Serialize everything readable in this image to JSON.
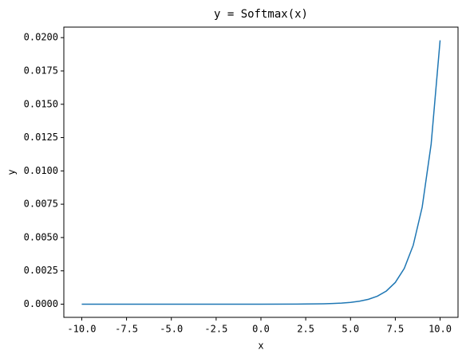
{
  "chart_data": {
    "type": "line",
    "title": "y =  Softmax(x)",
    "x_label": "x",
    "y_label": "y",
    "x": [
      -10,
      -8,
      -6,
      -4,
      -2,
      0,
      2,
      3,
      3.5,
      4,
      4.5,
      5,
      5.5,
      6,
      6.5,
      7,
      7.5,
      8,
      8.5,
      9,
      9.5,
      10
    ],
    "series": [
      {
        "name": "Softmax(x)",
        "color": "#1f77b4",
        "values": [
          0,
          0,
          0,
          0,
          0,
          0,
          6.6e-06,
          1.81e-05,
          2.98e-05,
          4.91e-05,
          8.1e-05,
          0.000133,
          0.00022,
          0.000363,
          0.000598,
          0.000986,
          0.00163,
          0.00268,
          0.00442,
          0.00728,
          0.01201,
          0.0198
        ]
      }
    ],
    "xlim": [
      -11,
      11
    ],
    "xticks": [
      {
        "value": -10,
        "label": "-10.0"
      },
      -7.5,
      {
        "value": -5,
        "label": "-5.0"
      },
      -2.5,
      {
        "value": 0,
        "label": "0.0"
      },
      2.5,
      {
        "value": 5,
        "label": "5.0"
      },
      7.5,
      {
        "value": 10,
        "label": "10.0"
      }
    ],
    "ylim": [
      -0.00099,
      0.02079
    ],
    "yticks": [
      {
        "value": 0,
        "label": "0.0000"
      },
      {
        "value": 0.0025,
        "label": "0.0025"
      },
      {
        "value": 0.005,
        "label": "0.0050"
      },
      {
        "value": 0.0075,
        "label": "0.0075"
      },
      {
        "value": 0.01,
        "label": "0.0100"
      },
      {
        "value": 0.0125,
        "label": "0.0125"
      },
      {
        "value": 0.015,
        "label": "0.0150"
      },
      {
        "value": 0.0175,
        "label": "0.0175"
      },
      {
        "value": 0.02,
        "label": "0.0200"
      }
    ],
    "grid": false
  }
}
